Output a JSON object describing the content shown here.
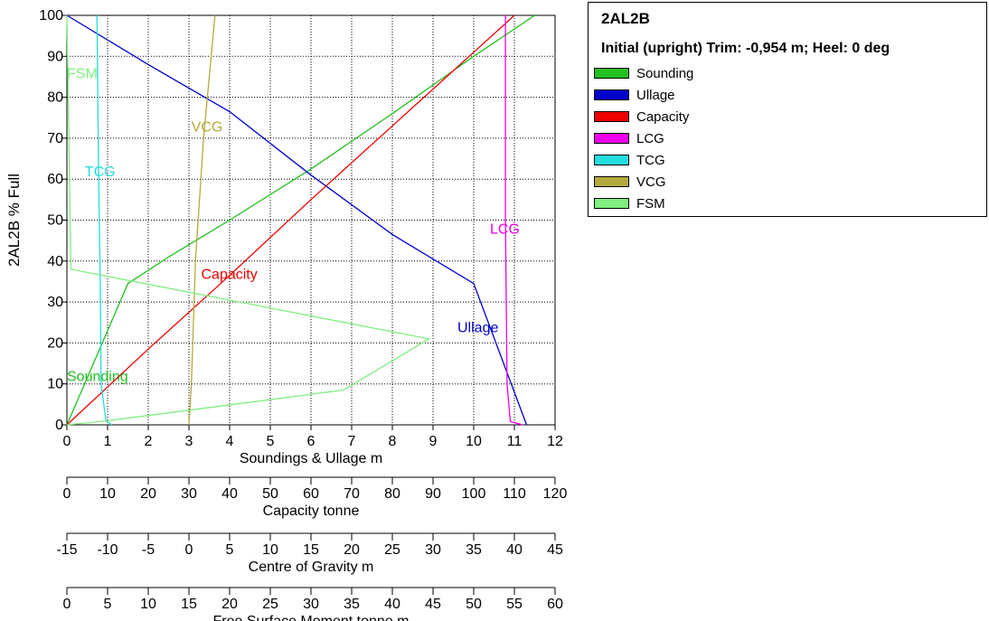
{
  "chart_data": {
    "type": "line",
    "ylabel": "2AL2B  % Full",
    "ylim": [
      0,
      100
    ],
    "y_ticks": [
      "0",
      "10",
      "20",
      "30",
      "40",
      "50",
      "60",
      "70",
      "80",
      "90",
      "100"
    ],
    "grid": true,
    "axes": [
      {
        "key": "sound",
        "label": "Soundings & Ullage  m",
        "min": 0,
        "max": 12,
        "ticks": [
          "0",
          "1",
          "2",
          "3",
          "4",
          "5",
          "6",
          "7",
          "8",
          "9",
          "10",
          "11",
          "12"
        ]
      },
      {
        "key": "cap",
        "label": "Capacity  tonne",
        "min": 0,
        "max": 120,
        "ticks": [
          "0",
          "10",
          "20",
          "30",
          "40",
          "50",
          "60",
          "70",
          "80",
          "90",
          "100",
          "110",
          "120"
        ]
      },
      {
        "key": "cog",
        "label": "Centre of Gravity  m",
        "min": -15,
        "max": 45,
        "ticks": [
          "-15",
          "-10",
          "-5",
          "0",
          "5",
          "10",
          "15",
          "20",
          "25",
          "30",
          "35",
          "40",
          "45"
        ]
      },
      {
        "key": "fsm",
        "label": "Free Surface Moment  tonne.m",
        "min": 0,
        "max": 60,
        "ticks": [
          "0",
          "5",
          "10",
          "15",
          "20",
          "25",
          "30",
          "35",
          "40",
          "45",
          "50",
          "55",
          "60"
        ]
      }
    ],
    "series": [
      {
        "name": "Sounding",
        "color": "#22c022",
        "axis": "sound",
        "label": {
          "text": "Sounding",
          "x": 0.0,
          "y": 12
        },
        "points": [
          [
            0.0,
            0
          ],
          [
            1.5,
            34.5
          ],
          [
            2.5,
            41
          ],
          [
            4,
            50
          ],
          [
            6,
            62.5
          ],
          [
            8,
            76
          ],
          [
            10,
            90
          ],
          [
            11.5,
            100
          ]
        ]
      },
      {
        "name": "Ullage",
        "color": "#0000cc",
        "axis": "sound",
        "label": {
          "text": "Ullage",
          "x": 9.6,
          "y": 24
        },
        "points": [
          [
            0.0,
            100
          ],
          [
            2,
            88
          ],
          [
            4,
            76.5
          ],
          [
            6,
            61
          ],
          [
            8,
            46.5
          ],
          [
            10,
            34.5
          ],
          [
            11.3,
            0
          ]
        ]
      },
      {
        "name": "Capacity",
        "color": "#ee0000",
        "axis": "cap",
        "label": {
          "text": "Capacity",
          "x": 33,
          "y": 37
        },
        "points": [
          [
            0,
            0
          ],
          [
            20,
            18.5
          ],
          [
            40,
            36.5
          ],
          [
            60,
            55
          ],
          [
            80,
            73
          ],
          [
            100,
            91
          ],
          [
            110,
            100
          ]
        ]
      },
      {
        "name": "LCG",
        "color": "#ee00ee",
        "axis": "cog",
        "label": {
          "text": "LCG",
          "x": 37,
          "y": 48
        },
        "points": [
          [
            38.9,
            100
          ],
          [
            38.9,
            50
          ],
          [
            39.1,
            10
          ],
          [
            39.5,
            0.8
          ],
          [
            41,
            0
          ]
        ]
      },
      {
        "name": "TCG",
        "color": "#22dddd",
        "axis": "cog",
        "label": {
          "text": "TCG",
          "x": -12.8,
          "y": 62
        },
        "points": [
          [
            -11.3,
            100
          ],
          [
            -11.1,
            60
          ],
          [
            -10.9,
            35
          ],
          [
            -10.8,
            10
          ],
          [
            -10.2,
            1
          ],
          [
            -9.5,
            0
          ]
        ]
      },
      {
        "name": "VCG",
        "color": "#b4aa3c",
        "axis": "cog",
        "label": {
          "text": "VCG",
          "x": 0.3,
          "y": 73
        },
        "points": [
          [
            0,
            0
          ],
          [
            0.3,
            10
          ],
          [
            0.8,
            40
          ],
          [
            1.8,
            70
          ],
          [
            2.5,
            85
          ],
          [
            3.2,
            100
          ]
        ]
      },
      {
        "name": "FSM",
        "color": "#80ee80",
        "axis": "fsm",
        "label": {
          "text": "FSM",
          "x": 0.0,
          "y": 86
        },
        "points": [
          [
            0,
            100
          ],
          [
            0.5,
            38
          ],
          [
            44.5,
            21
          ],
          [
            34,
            8.5
          ],
          [
            5,
            1
          ],
          [
            0,
            0
          ]
        ]
      }
    ]
  },
  "legend": {
    "title": "2AL2B",
    "subtitle": "Initial (upright) Trim: -0,954 m; Heel: 0 deg",
    "items": [
      {
        "label": "Sounding",
        "color": "#22c022"
      },
      {
        "label": "Ullage",
        "color": "#0000cc"
      },
      {
        "label": "Capacity",
        "color": "#ee0000"
      },
      {
        "label": "LCG",
        "color": "#ee00ee"
      },
      {
        "label": "TCG",
        "color": "#22dddd"
      },
      {
        "label": "VCG",
        "color": "#b4aa3c"
      },
      {
        "label": "FSM",
        "color": "#80ee80"
      }
    ]
  }
}
